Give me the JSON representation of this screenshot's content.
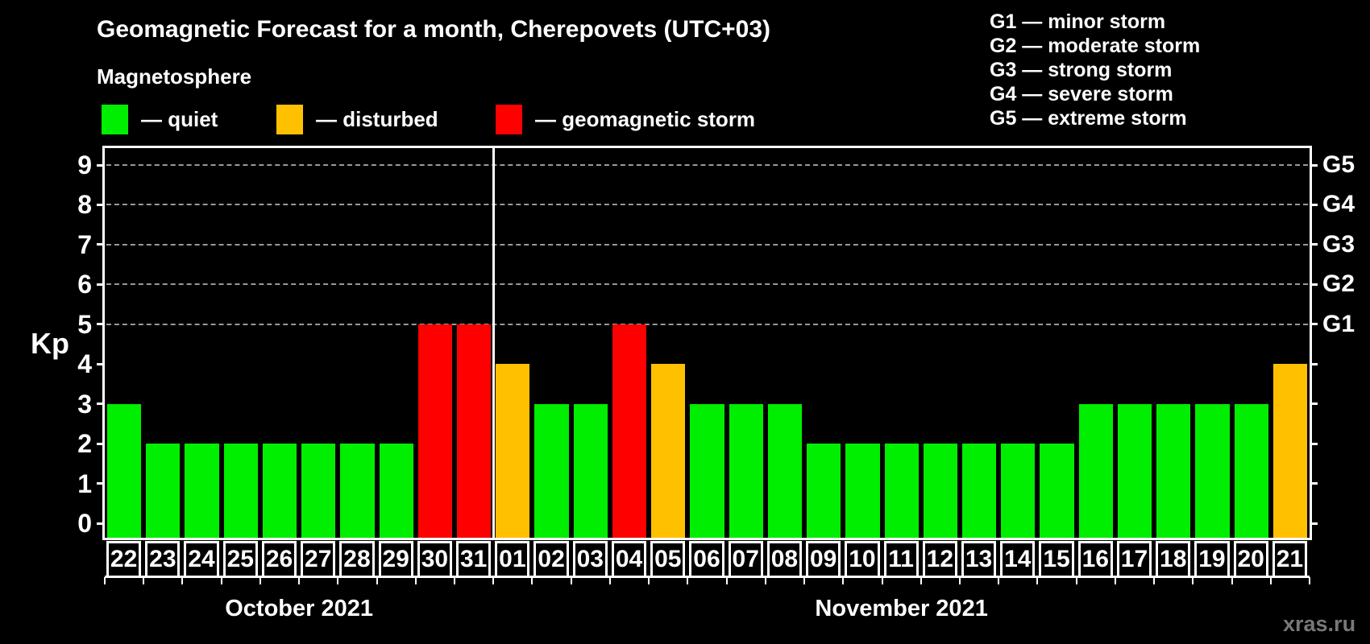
{
  "title": "Geomagnetic Forecast for a month, Cherepovets (UTC+03)",
  "subtitle": "Magnetosphere",
  "status_legend": [
    {
      "id": "quiet",
      "label": "— quiet"
    },
    {
      "id": "disturbed",
      "label": "— disturbed"
    },
    {
      "id": "storm",
      "label": "— geomagnetic storm"
    }
  ],
  "g_legend": [
    "G1 — minor storm",
    "G2 — moderate storm",
    "G3 — strong storm",
    "G4 — severe storm",
    "G5 — extreme storm"
  ],
  "colors": {
    "quiet": "#00ee00",
    "disturbed": "#ffc000",
    "storm": "#ff0000",
    "grid": "#999999",
    "axis": "#ffffff",
    "watermark": "#787878"
  },
  "watermark": "xras.ru",
  "chart_data": {
    "type": "bar",
    "title": "Geomagnetic Forecast for a month, Cherepovets (UTC+03)",
    "ylabel": "Kp",
    "ylim": [
      0,
      9
    ],
    "yticks": [
      0,
      1,
      2,
      3,
      4,
      5,
      6,
      7,
      8,
      9
    ],
    "grid_kp": [
      5,
      6,
      7,
      8,
      9
    ],
    "grid_style": "dashed",
    "legend_position": "top",
    "right_axis": [
      {
        "kp": 5,
        "label": "G1"
      },
      {
        "kp": 6,
        "label": "G2"
      },
      {
        "kp": 7,
        "label": "G3"
      },
      {
        "kp": 8,
        "label": "G4"
      },
      {
        "kp": 9,
        "label": "G5"
      }
    ],
    "months": [
      {
        "label": "October 2021",
        "days": [
          {
            "day": "22",
            "kp": 3,
            "status": "quiet"
          },
          {
            "day": "23",
            "kp": 2,
            "status": "quiet"
          },
          {
            "day": "24",
            "kp": 2,
            "status": "quiet"
          },
          {
            "day": "25",
            "kp": 2,
            "status": "quiet"
          },
          {
            "day": "26",
            "kp": 2,
            "status": "quiet"
          },
          {
            "day": "27",
            "kp": 2,
            "status": "quiet"
          },
          {
            "day": "28",
            "kp": 2,
            "status": "quiet"
          },
          {
            "day": "29",
            "kp": 2,
            "status": "quiet"
          },
          {
            "day": "30",
            "kp": 5,
            "status": "storm"
          },
          {
            "day": "31",
            "kp": 5,
            "status": "storm"
          }
        ]
      },
      {
        "label": "November 2021",
        "days": [
          {
            "day": "01",
            "kp": 4,
            "status": "disturbed"
          },
          {
            "day": "02",
            "kp": 3,
            "status": "quiet"
          },
          {
            "day": "03",
            "kp": 3,
            "status": "quiet"
          },
          {
            "day": "04",
            "kp": 5,
            "status": "storm"
          },
          {
            "day": "05",
            "kp": 4,
            "status": "disturbed"
          },
          {
            "day": "06",
            "kp": 3,
            "status": "quiet"
          },
          {
            "day": "07",
            "kp": 3,
            "status": "quiet"
          },
          {
            "day": "08",
            "kp": 3,
            "status": "quiet"
          },
          {
            "day": "09",
            "kp": 2,
            "status": "quiet"
          },
          {
            "day": "10",
            "kp": 2,
            "status": "quiet"
          },
          {
            "day": "11",
            "kp": 2,
            "status": "quiet"
          },
          {
            "day": "12",
            "kp": 2,
            "status": "quiet"
          },
          {
            "day": "13",
            "kp": 2,
            "status": "quiet"
          },
          {
            "day": "14",
            "kp": 2,
            "status": "quiet"
          },
          {
            "day": "15",
            "kp": 2,
            "status": "quiet"
          },
          {
            "day": "16",
            "kp": 3,
            "status": "quiet"
          },
          {
            "day": "17",
            "kp": 3,
            "status": "quiet"
          },
          {
            "day": "18",
            "kp": 3,
            "status": "quiet"
          },
          {
            "day": "19",
            "kp": 3,
            "status": "quiet"
          },
          {
            "day": "20",
            "kp": 3,
            "status": "quiet"
          },
          {
            "day": "21",
            "kp": 4,
            "status": "disturbed"
          }
        ]
      }
    ]
  }
}
